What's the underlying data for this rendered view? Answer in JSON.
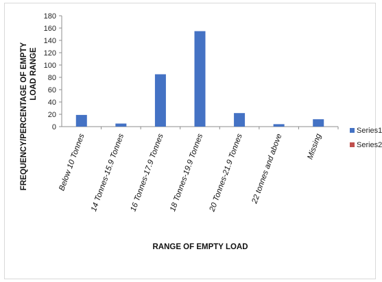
{
  "chart_data": {
    "type": "bar",
    "categories": [
      "Below 10 Tonnes",
      "14 Tonnes-15.9 Tonnes",
      "16 Tonnes-17.9 Tonnes",
      "18 Tonnes-19.9 Tonnes",
      "20 Tonnes-21.9 Tonnes",
      "22 tonnes and above",
      "Missing"
    ],
    "series": [
      {
        "name": "Series1",
        "color": "#4472C4",
        "values": [
          19,
          5,
          85,
          155,
          22,
          4,
          12
        ]
      },
      {
        "name": "Series2",
        "color": "#C0504D",
        "values": [
          null,
          null,
          null,
          null,
          null,
          null,
          null
        ]
      }
    ],
    "ylabel_line1": "FREQUENCY/PERCENTAGE OF EMPTY",
    "ylabel_line2": "LOAD RANGE",
    "xlabel": "RANGE OF EMPTY LOAD",
    "ylim": [
      0,
      180
    ],
    "yticks": [
      0,
      20,
      40,
      60,
      80,
      100,
      120,
      140,
      160,
      180
    ],
    "grid": false,
    "legend_position": "right"
  }
}
